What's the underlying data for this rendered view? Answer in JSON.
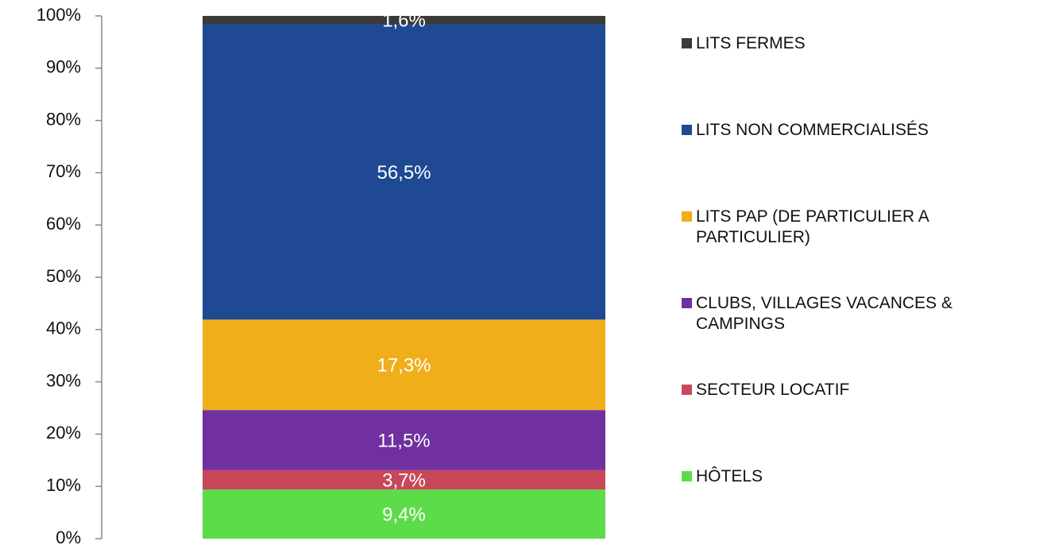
{
  "chart_data": {
    "type": "stacked_bar",
    "categories": [
      null
    ],
    "series": [
      {
        "name": "HÔTELS",
        "color": "#5ddc4a",
        "values": [
          9.4
        ],
        "value_labels": [
          "9,4%"
        ]
      },
      {
        "name": "SECTEUR LOCATIF",
        "color": "#c8485a",
        "values": [
          3.7
        ],
        "value_labels": [
          "3,7%"
        ]
      },
      {
        "name": "CLUBS, VILLAGES VACANCES & CAMPINGS",
        "color": "#7030a0",
        "values": [
          11.5
        ],
        "value_labels": [
          "11,5%"
        ]
      },
      {
        "name": "LITS PAP (DE PARTICULIER A PARTICULIER)",
        "color": "#f0ae1a",
        "values": [
          17.3
        ],
        "value_labels": [
          "17,3%"
        ]
      },
      {
        "name": "LITS NON COMMERCIALISÉS",
        "color": "#1f4a93",
        "values": [
          56.5
        ],
        "value_labels": [
          "56,5%"
        ]
      },
      {
        "name": "LITS FERMES",
        "color": "#3a3a3a",
        "values": [
          1.6
        ],
        "value_labels": [
          "1,6%"
        ]
      }
    ],
    "ylim": [
      0,
      100
    ],
    "yticks": [
      {
        "value": 0,
        "label": "0%"
      },
      {
        "value": 10,
        "label": "10%"
      },
      {
        "value": 20,
        "label": "20%"
      },
      {
        "value": 30,
        "label": "30%"
      },
      {
        "value": 40,
        "label": "40%"
      },
      {
        "value": 50,
        "label": "50%"
      },
      {
        "value": 60,
        "label": "60%"
      },
      {
        "value": 70,
        "label": "70%"
      },
      {
        "value": 80,
        "label": "80%"
      },
      {
        "value": 90,
        "label": "90%"
      },
      {
        "value": 100,
        "label": "100%"
      }
    ],
    "legend": "right"
  }
}
